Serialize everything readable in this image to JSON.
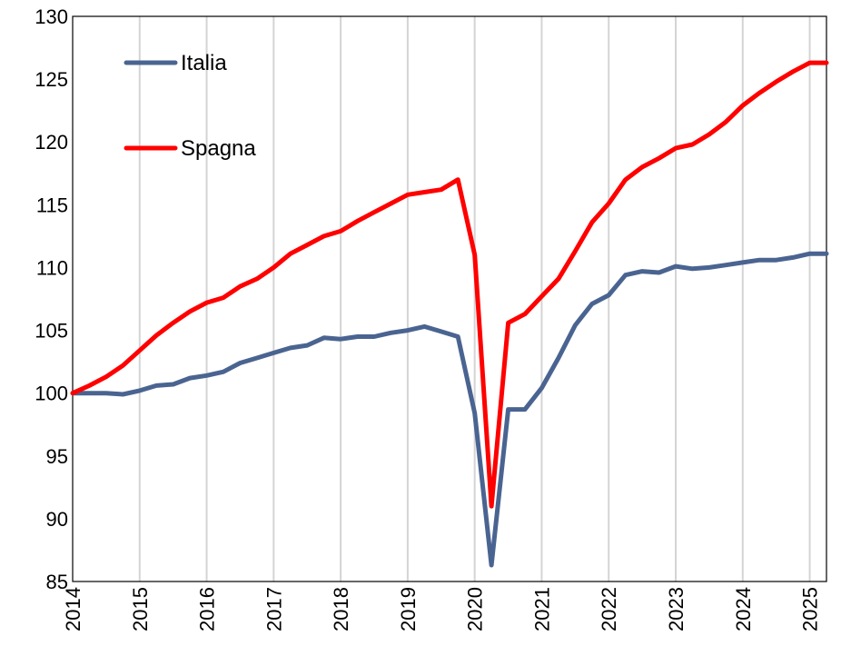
{
  "chart_data": {
    "type": "line",
    "title": "",
    "xlabel": "",
    "ylabel": "",
    "ylim": [
      85,
      130
    ],
    "xlim": [
      2014.0,
      2025.25
    ],
    "yticks": [
      "130",
      "125",
      "120",
      "115",
      "110",
      "105",
      "100",
      "95",
      "90",
      "85"
    ],
    "xticks": [
      "2014",
      "2015",
      "2016",
      "2017",
      "2018",
      "2019",
      "2020",
      "2021",
      "2022",
      "2023",
      "2024",
      "2025"
    ],
    "grid": "vertical",
    "legend_position": "top-left",
    "x": [
      2014.0,
      2014.25,
      2014.5,
      2014.75,
      2015.0,
      2015.25,
      2015.5,
      2015.75,
      2016.0,
      2016.25,
      2016.5,
      2016.75,
      2017.0,
      2017.25,
      2017.5,
      2017.75,
      2018.0,
      2018.25,
      2018.5,
      2018.75,
      2019.0,
      2019.25,
      2019.5,
      2019.75,
      2020.0,
      2020.25,
      2020.5,
      2020.75,
      2021.0,
      2021.25,
      2021.5,
      2021.75,
      2022.0,
      2022.25,
      2022.5,
      2022.75,
      2023.0,
      2023.25,
      2023.5,
      2023.75,
      2024.0,
      2024.25,
      2024.5,
      2024.75,
      2025.0,
      2025.25
    ],
    "series": [
      {
        "name": "Italia",
        "color": "#4a6491",
        "values": [
          100.0,
          100.0,
          100.0,
          99.9,
          100.2,
          100.6,
          100.7,
          101.2,
          101.4,
          101.7,
          102.4,
          102.8,
          103.2,
          103.6,
          103.8,
          104.4,
          104.3,
          104.5,
          104.5,
          104.8,
          105.0,
          105.3,
          104.9,
          104.5,
          98.4,
          86.3,
          98.7,
          98.7,
          100.4,
          102.8,
          105.4,
          107.1,
          107.8,
          109.4,
          109.7,
          109.6,
          110.1,
          109.9,
          110.0,
          110.2,
          110.4,
          110.6,
          110.6,
          110.8,
          111.1,
          111.1
        ]
      },
      {
        "name": "Spagna",
        "color": "#ff0000",
        "values": [
          100.0,
          100.6,
          101.3,
          102.2,
          103.4,
          104.6,
          105.6,
          106.5,
          107.2,
          107.6,
          108.5,
          109.1,
          110.0,
          111.1,
          111.8,
          112.5,
          112.9,
          113.7,
          114.4,
          115.1,
          115.8,
          116.0,
          116.2,
          117.0,
          111.0,
          91.0,
          105.6,
          106.3,
          107.7,
          109.1,
          111.3,
          113.6,
          115.1,
          117.0,
          118.0,
          118.7,
          119.5,
          119.8,
          120.6,
          121.6,
          122.9,
          123.9,
          124.8,
          125.6,
          126.3,
          126.3
        ]
      }
    ]
  }
}
